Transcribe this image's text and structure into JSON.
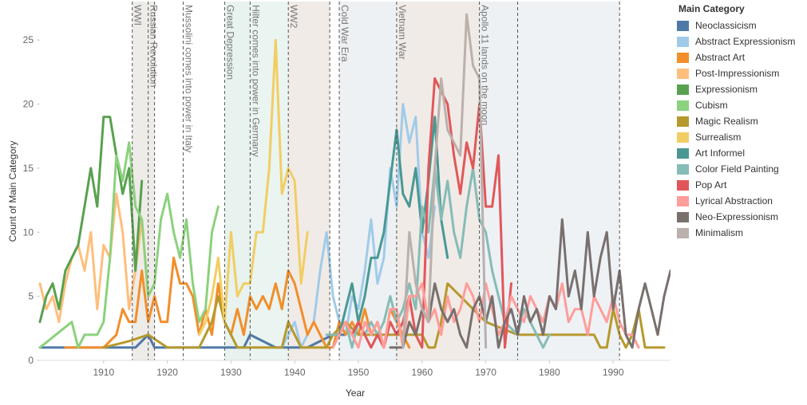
{
  "chart_data": {
    "type": "line",
    "xlabel": "Year",
    "ylabel": "Count of Main Category",
    "xlim": [
      1900,
      1999
    ],
    "ylim": [
      0,
      28
    ],
    "x_ticks": [
      1910,
      1920,
      1930,
      1940,
      1950,
      1960,
      1970,
      1980,
      1990
    ],
    "y_ticks": [
      0,
      5,
      10,
      15,
      20,
      25
    ],
    "legend_title": "Main Category",
    "legend_position": "right",
    "grid": false,
    "period_bands": [
      {
        "start": 1914.5,
        "end": 1918,
        "color": "#eeece9"
      },
      {
        "start": 1929,
        "end": 1933,
        "color": "#e8f2ef"
      },
      {
        "start": 1933,
        "end": 1939,
        "color": "#eaf4f1"
      },
      {
        "start": 1939,
        "end": 1945.5,
        "color": "#f1ebe7"
      },
      {
        "start": 1947,
        "end": 1956,
        "color": "#edf1f4"
      },
      {
        "start": 1956,
        "end": 1969,
        "color": "#f1ebe7"
      },
      {
        "start": 1969,
        "end": 1975,
        "color": "#edf1f4"
      },
      {
        "start": 1975,
        "end": 1991,
        "color": "#eef2f5"
      }
    ],
    "events": [
      {
        "x": 1914.5,
        "label": "WWI"
      },
      {
        "x": 1917,
        "label": "Russian Revolution"
      },
      {
        "x": 1918,
        "label": ""
      },
      {
        "x": 1922.5,
        "label": "Mussolini comes into power in Italy"
      },
      {
        "x": 1929,
        "label": "Great Depression"
      },
      {
        "x": 1933,
        "label": "Hilter comes into power in Germany"
      },
      {
        "x": 1939,
        "label": "WW2"
      },
      {
        "x": 1945.5,
        "label": ""
      },
      {
        "x": 1947,
        "label": "Cold War Era"
      },
      {
        "x": 1956,
        "label": "Vietnam War"
      },
      {
        "x": 1969,
        "label": "Apollo 11 lands on the moon"
      },
      {
        "x": 1975,
        "label": ""
      },
      {
        "x": 1991,
        "label": ""
      }
    ],
    "series": [
      {
        "name": "Neoclassicism",
        "color": "#4e79a7",
        "x": [
          1900,
          1910,
          1915,
          1917,
          1918,
          1925,
          1930,
          1932,
          1933,
          1935,
          1937,
          1940,
          1942,
          1946,
          1948
        ],
        "y": [
          1,
          1,
          1,
          2,
          1,
          1,
          1,
          1,
          2,
          1.5,
          1,
          1,
          1,
          2,
          2
        ]
      },
      {
        "name": "Abstract Expressionism",
        "color": "#a0cbe8",
        "x": [
          1938,
          1940,
          1941,
          1942,
          1943,
          1944,
          1945,
          1946,
          1947,
          1948,
          1949,
          1950,
          1951,
          1952,
          1953,
          1954,
          1955,
          1956,
          1957,
          1958,
          1959,
          1960,
          1961,
          1962
        ],
        "y": [
          1,
          3,
          1,
          2,
          3,
          7,
          10,
          5,
          3,
          2,
          5,
          4,
          7,
          11,
          6,
          8,
          15,
          12,
          20,
          17,
          19,
          10,
          8,
          12
        ]
      },
      {
        "name": "Abstract Art",
        "color": "#f28e2b",
        "x": [
          1904,
          1910,
          1912,
          1913,
          1914,
          1915,
          1916,
          1917,
          1918,
          1919,
          1920,
          1921,
          1922,
          1923,
          1924,
          1925,
          1926,
          1927,
          1928,
          1929,
          1930,
          1931,
          1932,
          1933,
          1934,
          1935,
          1936,
          1937,
          1938,
          1939,
          1940,
          1941,
          1942,
          1943,
          1944,
          1945,
          1946,
          1947,
          1948,
          1949,
          1950,
          1951,
          1952,
          1953,
          1954,
          1955,
          1956,
          1957,
          1958
        ],
        "y": [
          1,
          1,
          2,
          4,
          3,
          3,
          7,
          3,
          5,
          3,
          3,
          8,
          6,
          6,
          5,
          2,
          4,
          2,
          6,
          3,
          2,
          4,
          2,
          5,
          4,
          5,
          4,
          6,
          4,
          7,
          6,
          4,
          2,
          3,
          2,
          1,
          1,
          3,
          2,
          3,
          2,
          4,
          2,
          3,
          1,
          4,
          3,
          2,
          1
        ]
      },
      {
        "name": "Post-Impressionism",
        "color": "#ffbe7d",
        "x": [
          1900,
          1901,
          1902,
          1903,
          1904,
          1905,
          1906,
          1907,
          1908,
          1909,
          1910,
          1911,
          1912,
          1913,
          1914,
          1915,
          1916,
          1917
        ],
        "y": [
          6,
          4,
          5,
          3,
          6,
          8,
          9,
          7,
          10,
          4,
          9,
          8,
          13,
          10,
          4,
          7,
          11,
          5
        ]
      },
      {
        "name": "Expressionism",
        "color": "#59a14f",
        "x": [
          1900,
          1901,
          1902,
          1903,
          1904,
          1905,
          1906,
          1907,
          1908,
          1909,
          1910,
          1911,
          1912,
          1913,
          1914,
          1915,
          1916
        ],
        "y": [
          3,
          5,
          6,
          4,
          7,
          8,
          9,
          12,
          15,
          12,
          19,
          19,
          16,
          13,
          15,
          7,
          14
        ]
      },
      {
        "name": "Cubism",
        "color": "#8cd17d",
        "x": [
          1900,
          1905,
          1906,
          1907,
          1908,
          1909,
          1910,
          1911,
          1912,
          1913,
          1914,
          1915,
          1916,
          1917,
          1918,
          1919,
          1920,
          1921,
          1922,
          1923,
          1924,
          1925,
          1926,
          1927,
          1928
        ],
        "y": [
          1,
          3,
          1,
          2,
          2,
          2,
          3,
          8,
          16,
          14,
          17,
          12,
          11,
          5,
          6,
          11,
          13,
          10,
          8,
          11,
          6,
          3,
          4,
          10,
          12
        ]
      },
      {
        "name": "Magic Realism",
        "color": "#b6992d",
        "x": [
          1910,
          1914,
          1917,
          1920,
          1925,
          1927,
          1928,
          1929,
          1930,
          1931,
          1935,
          1937,
          1938,
          1939,
          1940,
          1941,
          1945,
          1946,
          1948,
          1950,
          1955,
          1960,
          1961,
          1962,
          1963,
          1964,
          1966,
          1970,
          1975,
          1980,
          1985,
          1987,
          1988,
          1989,
          1990,
          1991,
          1992,
          1993,
          1994,
          1995,
          1996,
          1998
        ],
        "y": [
          1,
          1.5,
          2,
          1,
          1,
          3,
          5,
          3,
          2,
          1,
          1,
          1,
          1,
          3,
          2,
          1,
          1,
          2,
          3,
          2,
          2,
          2,
          1,
          1,
          3,
          6,
          5,
          3,
          2,
          2,
          2,
          2,
          1,
          1,
          4,
          2,
          1,
          2,
          4,
          1,
          1,
          1
        ]
      },
      {
        "name": "Surrealism",
        "color": "#f1ce63",
        "x": [
          1925,
          1926,
          1927,
          1928,
          1929,
          1930,
          1931,
          1932,
          1933,
          1934,
          1935,
          1936,
          1937,
          1938,
          1939,
          1940,
          1941,
          1942
        ],
        "y": [
          2,
          3,
          5,
          8,
          3,
          10,
          5,
          6,
          6,
          10,
          10,
          15,
          25,
          13,
          15,
          14,
          6,
          10
        ]
      },
      {
        "name": "Art Informel",
        "color": "#499894",
        "x": [
          1947,
          1948,
          1949,
          1950,
          1951,
          1952,
          1953,
          1954,
          1955,
          1956,
          1957,
          1958,
          1959,
          1960,
          1961,
          1962,
          1963,
          1964
        ],
        "y": [
          2,
          4,
          6,
          3,
          5,
          8,
          8,
          10,
          14,
          18,
          13,
          12,
          15,
          10,
          14,
          19,
          11,
          8
        ]
      },
      {
        "name": "Color Field Painting",
        "color": "#86bcb6",
        "x": [
          1945,
          1947,
          1948,
          1949,
          1950,
          1951,
          1952,
          1953,
          1954,
          1955,
          1956,
          1957,
          1958,
          1959,
          1960,
          1961,
          1962,
          1963,
          1964,
          1965,
          1966,
          1967,
          1968,
          1969,
          1970,
          1971,
          1972,
          1973,
          1975,
          1976,
          1977,
          1978,
          1979,
          1980
        ],
        "y": [
          2,
          2,
          3,
          1,
          3,
          2,
          3,
          2,
          3,
          5,
          3,
          4,
          6,
          4,
          12,
          10,
          15,
          11,
          14,
          10,
          8,
          12,
          15,
          11,
          10,
          7,
          5,
          3,
          2,
          4,
          3,
          2,
          1,
          2
        ]
      },
      {
        "name": "Pop Art",
        "color": "#e15759",
        "x": [
          1947,
          1948,
          1949,
          1950,
          1951,
          1952,
          1953,
          1954,
          1955,
          1956,
          1957,
          1958,
          1959,
          1960,
          1961,
          1962,
          1963,
          1964,
          1965,
          1966,
          1967,
          1968,
          1969,
          1970,
          1971,
          1972,
          1973,
          1974
        ],
        "y": [
          2,
          3,
          2,
          3,
          2,
          1,
          2,
          1,
          3,
          2,
          3,
          5,
          2,
          1,
          15,
          22,
          21,
          20,
          16,
          13,
          17,
          15,
          20,
          12,
          12,
          16,
          1,
          6
        ]
      },
      {
        "name": "Lyrical Abstraction",
        "color": "#ff9d9a",
        "x": [
          1946,
          1947,
          1948,
          1949,
          1950,
          1951,
          1952,
          1953,
          1954,
          1955,
          1956,
          1957,
          1958,
          1959,
          1960,
          1961,
          1962,
          1963,
          1964,
          1965,
          1966,
          1967,
          1968,
          1969,
          1970,
          1971,
          1972,
          1973,
          1974,
          1975,
          1976,
          1977,
          1978,
          1979,
          1980,
          1981,
          1982,
          1983,
          1984,
          1985,
          1986,
          1987,
          1988,
          1989,
          1990,
          1991,
          1992,
          1993,
          1994
        ],
        "y": [
          1,
          2,
          3,
          2,
          1,
          3,
          2,
          3,
          1,
          4,
          4,
          1,
          5,
          5,
          6,
          3,
          4,
          2,
          5,
          3,
          4,
          6,
          5,
          3,
          6,
          4,
          2,
          3,
          5,
          4,
          3,
          5,
          4,
          3,
          5,
          4,
          6,
          3,
          4,
          4,
          2,
          5,
          4,
          3,
          5,
          3,
          2,
          2,
          1
        ]
      },
      {
        "name": "Neo-Expressionism",
        "color": "#79706e",
        "x": [
          1955,
          1957,
          1958,
          1959,
          1960,
          1961,
          1962,
          1963,
          1964,
          1965,
          1966,
          1967,
          1968,
          1969,
          1970,
          1971,
          1972,
          1973,
          1974,
          1975,
          1976,
          1977,
          1978,
          1979,
          1980,
          1981,
          1982,
          1983,
          1984,
          1985,
          1986,
          1987,
          1988,
          1989,
          1990,
          1991,
          1992,
          1993,
          1994,
          1995,
          1996,
          1997,
          1998,
          1999
        ],
        "y": [
          1,
          1,
          3,
          2,
          4,
          3,
          6,
          4,
          3,
          4,
          2,
          1,
          4,
          5,
          3,
          5,
          1,
          3,
          4,
          2,
          5,
          3,
          4,
          2,
          5,
          4,
          11,
          5,
          7,
          4,
          10,
          5,
          8,
          10,
          4,
          7,
          2,
          1,
          4,
          6,
          4,
          2,
          5,
          7
        ]
      },
      {
        "name": "Minimalism",
        "color": "#bab0ac",
        "x": [
          1957,
          1958,
          1959,
          1960,
          1961,
          1962,
          1963,
          1964,
          1965,
          1966,
          1967,
          1968,
          1969,
          1970
        ],
        "y": [
          1,
          10,
          6,
          4,
          3,
          15,
          22,
          18,
          17,
          16,
          27,
          23,
          22,
          1
        ]
      }
    ]
  }
}
